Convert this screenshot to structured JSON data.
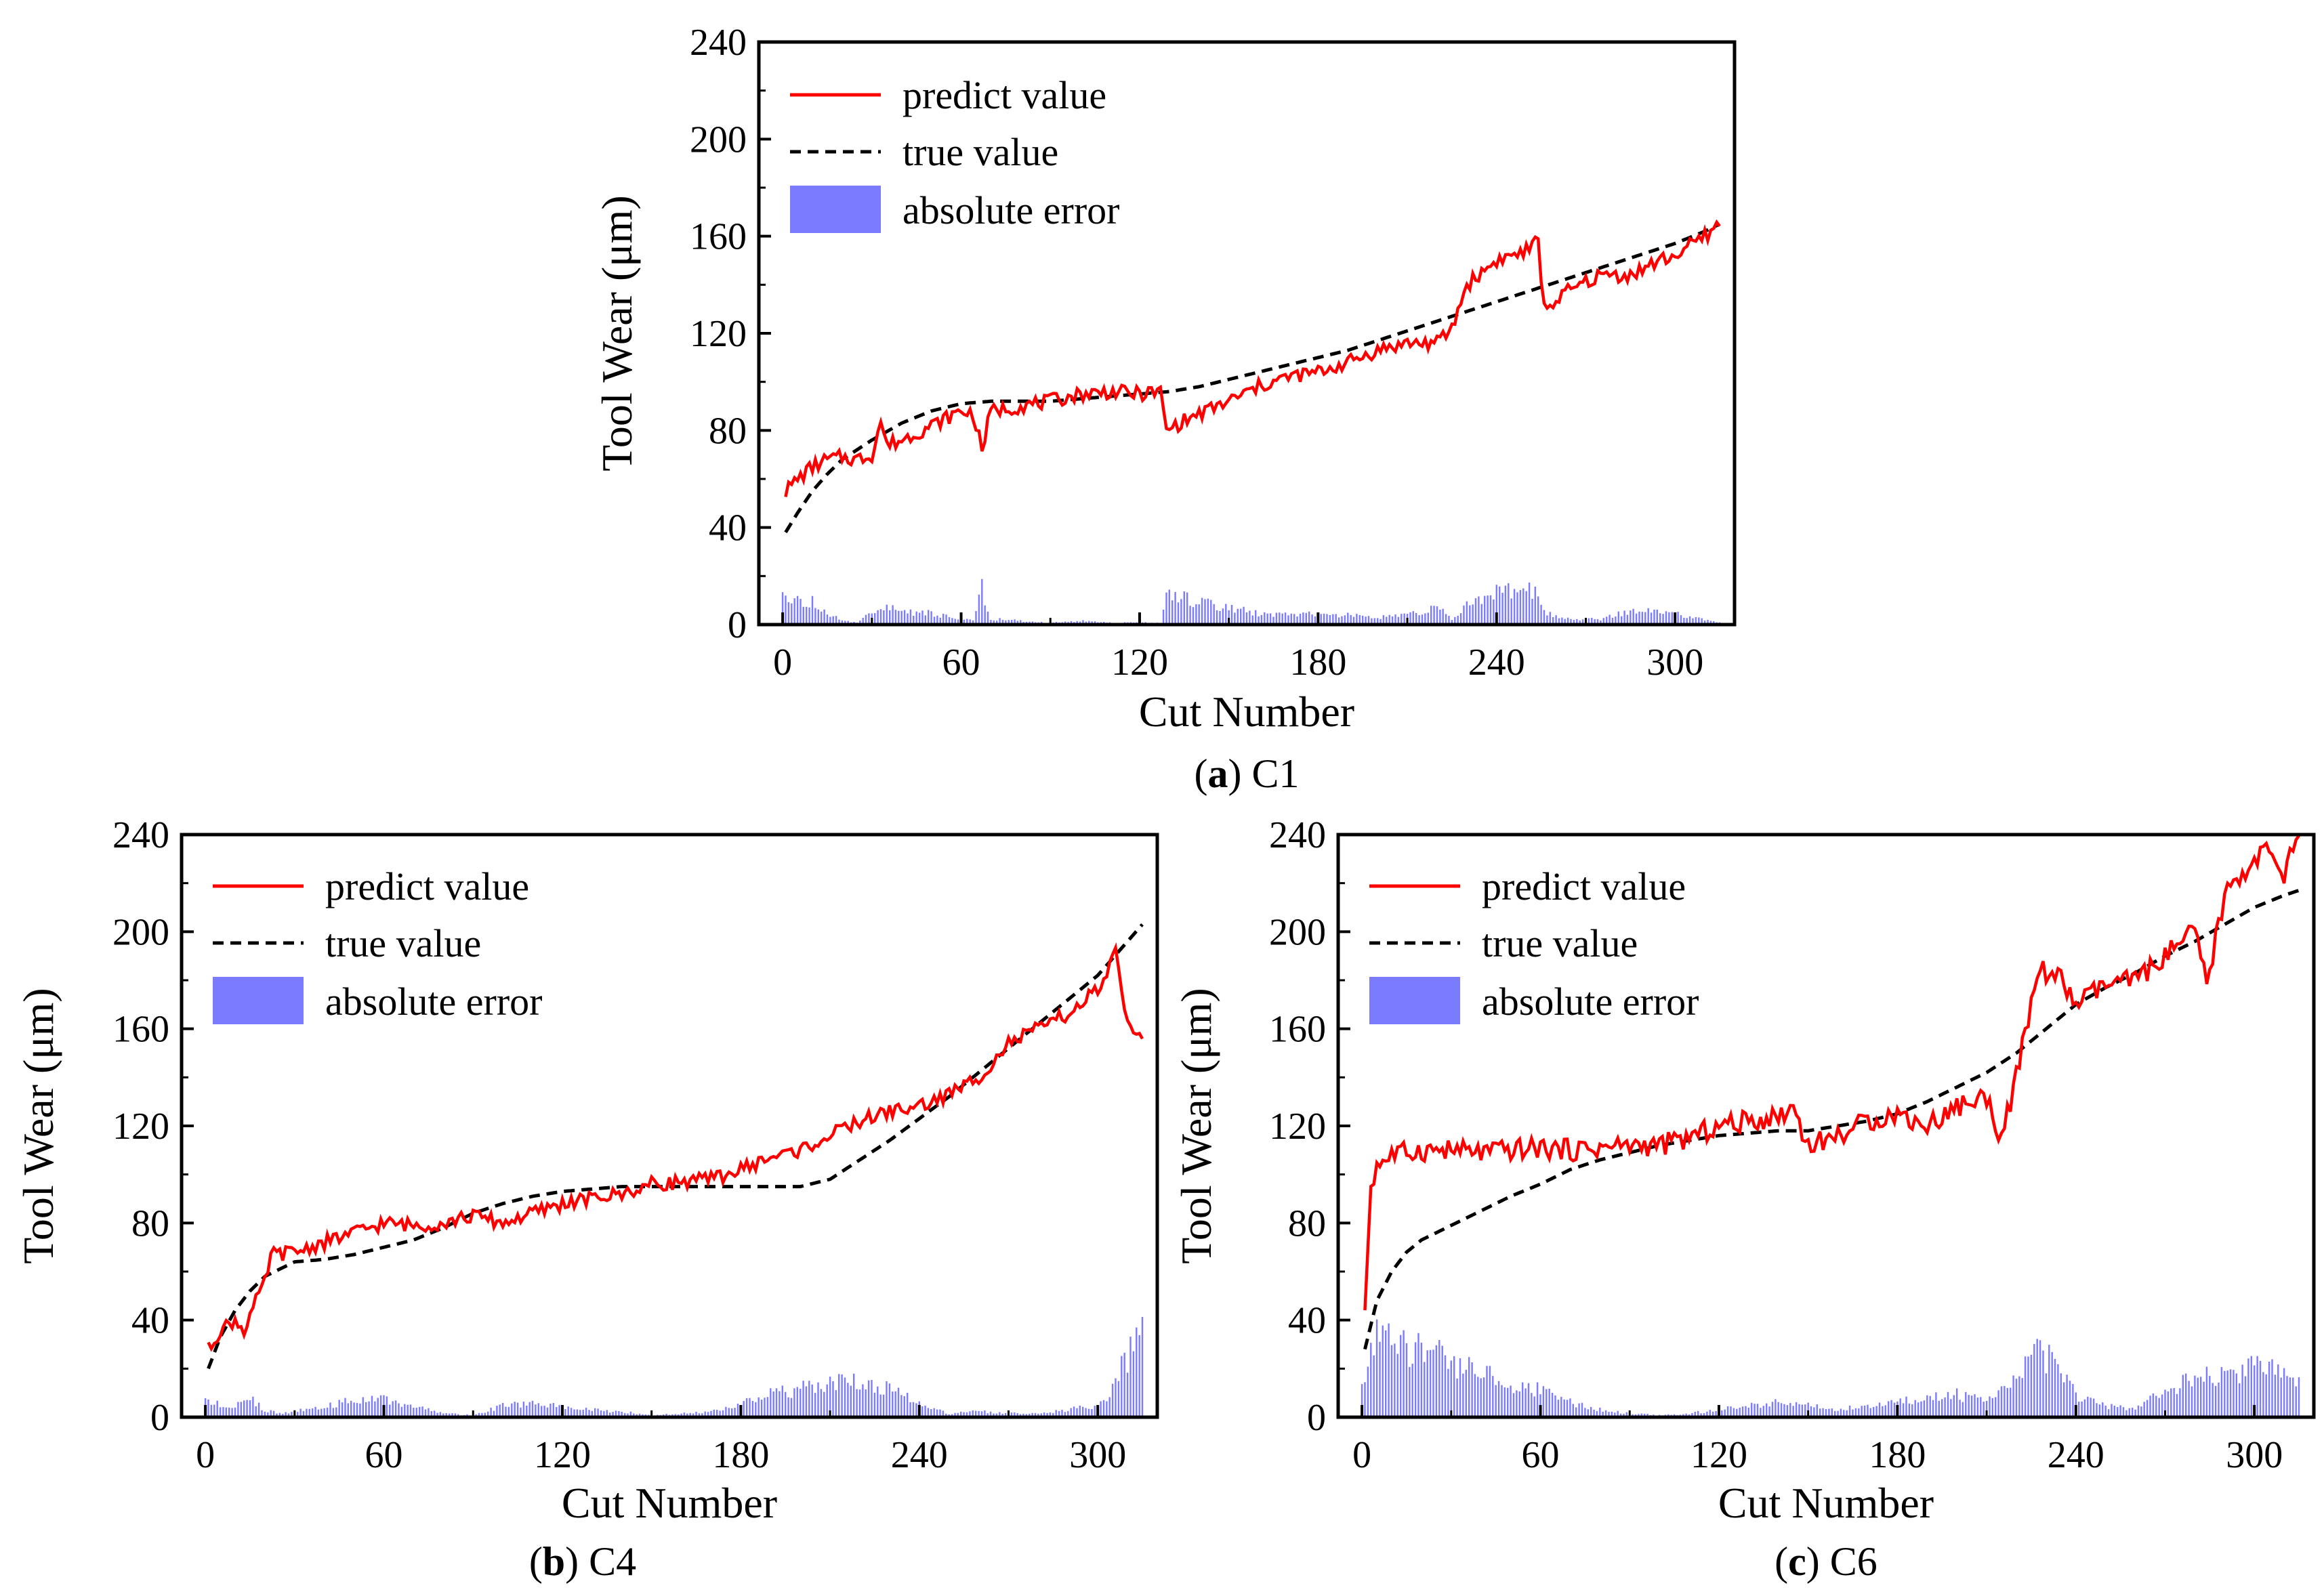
{
  "legend": {
    "predict": "predict value",
    "true": "true value",
    "error": "absolute error"
  },
  "colors": {
    "predict": "#ff0000",
    "true": "#000000",
    "error": "#7b7bff"
  },
  "chart_data": [
    {
      "id": "C1",
      "type": "line",
      "caption_letter": "a",
      "caption_label": "C1",
      "xlabel": "Cut Number",
      "ylabel": "Tool Wear (μm)",
      "xlim": [
        -8,
        320
      ],
      "ylim": [
        0,
        240
      ],
      "xticks": [
        0,
        60,
        120,
        180,
        240,
        300
      ],
      "yticks": [
        0,
        40,
        80,
        120,
        160,
        200,
        240
      ],
      "legend_position": "top-left",
      "n_cuts": 315,
      "true_value": [
        [
          1,
          38
        ],
        [
          5,
          46
        ],
        [
          10,
          55
        ],
        [
          15,
          62
        ],
        [
          20,
          68
        ],
        [
          30,
          76
        ],
        [
          40,
          83
        ],
        [
          50,
          88
        ],
        [
          60,
          91
        ],
        [
          70,
          92
        ],
        [
          80,
          92
        ],
        [
          90,
          92
        ],
        [
          100,
          93
        ],
        [
          110,
          94
        ],
        [
          120,
          95
        ],
        [
          130,
          96
        ],
        [
          140,
          98
        ],
        [
          150,
          101
        ],
        [
          160,
          104
        ],
        [
          170,
          107
        ],
        [
          180,
          110
        ],
        [
          190,
          113
        ],
        [
          200,
          117
        ],
        [
          210,
          121
        ],
        [
          220,
          125
        ],
        [
          230,
          129
        ],
        [
          240,
          133
        ],
        [
          250,
          137
        ],
        [
          260,
          141
        ],
        [
          270,
          145
        ],
        [
          280,
          149
        ],
        [
          290,
          153
        ],
        [
          300,
          157
        ],
        [
          310,
          162
        ],
        [
          315,
          165
        ]
      ],
      "predict_value": [
        [
          1,
          55
        ],
        [
          5,
          60
        ],
        [
          10,
          65
        ],
        [
          15,
          68
        ],
        [
          20,
          69
        ],
        [
          25,
          68
        ],
        [
          30,
          70
        ],
        [
          33,
          84
        ],
        [
          35,
          74
        ],
        [
          40,
          76
        ],
        [
          50,
          82
        ],
        [
          60,
          88
        ],
        [
          64,
          87
        ],
        [
          67,
          72
        ],
        [
          70,
          88
        ],
        [
          80,
          90
        ],
        [
          90,
          92
        ],
        [
          100,
          95
        ],
        [
          110,
          96
        ],
        [
          120,
          95
        ],
        [
          127,
          96
        ],
        [
          129,
          80
        ],
        [
          135,
          84
        ],
        [
          150,
          92
        ],
        [
          160,
          98
        ],
        [
          170,
          102
        ],
        [
          180,
          104
        ],
        [
          190,
          108
        ],
        [
          200,
          113
        ],
        [
          210,
          116
        ],
        [
          220,
          116
        ],
        [
          225,
          122
        ],
        [
          230,
          140
        ],
        [
          240,
          150
        ],
        [
          250,
          154
        ],
        [
          254,
          158
        ],
        [
          256,
          130
        ],
        [
          265,
          138
        ],
        [
          275,
          144
        ],
        [
          285,
          144
        ],
        [
          295,
          150
        ],
        [
          300,
          152
        ],
        [
          310,
          160
        ],
        [
          315,
          165
        ]
      ],
      "error_envelope": [
        [
          0,
          16
        ],
        [
          10,
          12
        ],
        [
          15,
          6
        ],
        [
          20,
          2
        ],
        [
          25,
          1
        ],
        [
          33,
          10
        ],
        [
          40,
          7
        ],
        [
          50,
          6
        ],
        [
          60,
          3
        ],
        [
          64,
          2
        ],
        [
          67,
          19
        ],
        [
          70,
          3
        ],
        [
          80,
          2
        ],
        [
          90,
          1
        ],
        [
          100,
          2
        ],
        [
          110,
          1
        ],
        [
          120,
          1
        ],
        [
          127,
          1
        ],
        [
          129,
          16
        ],
        [
          140,
          12
        ],
        [
          150,
          9
        ],
        [
          160,
          6
        ],
        [
          170,
          5
        ],
        [
          180,
          6
        ],
        [
          190,
          5
        ],
        [
          200,
          4
        ],
        [
          210,
          5
        ],
        [
          220,
          9
        ],
        [
          225,
          3
        ],
        [
          230,
          12
        ],
        [
          240,
          17
        ],
        [
          250,
          18
        ],
        [
          254,
          20
        ],
        [
          256,
          6
        ],
        [
          265,
          3
        ],
        [
          275,
          3
        ],
        [
          285,
          7
        ],
        [
          295,
          8
        ],
        [
          305,
          4
        ],
        [
          315,
          1
        ]
      ]
    },
    {
      "id": "C4",
      "type": "line",
      "caption_letter": "b",
      "caption_label": "C4",
      "xlabel": "Cut Number",
      "ylabel": "Tool Wear (μm)",
      "xlim": [
        -8,
        320
      ],
      "ylim": [
        0,
        240
      ],
      "xticks": [
        0,
        60,
        120,
        180,
        240,
        300
      ],
      "yticks": [
        0,
        40,
        80,
        120,
        160,
        200,
        240
      ],
      "legend_position": "top-left",
      "n_cuts": 315,
      "true_value": [
        [
          1,
          20
        ],
        [
          5,
          33
        ],
        [
          10,
          44
        ],
        [
          15,
          52
        ],
        [
          20,
          58
        ],
        [
          30,
          64
        ],
        [
          40,
          65
        ],
        [
          50,
          67
        ],
        [
          60,
          70
        ],
        [
          70,
          73
        ],
        [
          80,
          78
        ],
        [
          90,
          84
        ],
        [
          100,
          88
        ],
        [
          110,
          91
        ],
        [
          120,
          93
        ],
        [
          130,
          94
        ],
        [
          140,
          95
        ],
        [
          160,
          95
        ],
        [
          180,
          95
        ],
        [
          200,
          95
        ],
        [
          210,
          98
        ],
        [
          220,
          106
        ],
        [
          230,
          114
        ],
        [
          240,
          123
        ],
        [
          250,
          132
        ],
        [
          260,
          142
        ],
        [
          270,
          152
        ],
        [
          280,
          162
        ],
        [
          290,
          172
        ],
        [
          300,
          182
        ],
        [
          310,
          196
        ],
        [
          315,
          203
        ]
      ],
      "predict_value": [
        [
          1,
          28
        ],
        [
          5,
          36
        ],
        [
          10,
          40
        ],
        [
          13,
          36
        ],
        [
          16,
          45
        ],
        [
          20,
          55
        ],
        [
          22,
          67
        ],
        [
          30,
          68
        ],
        [
          40,
          72
        ],
        [
          50,
          76
        ],
        [
          60,
          80
        ],
        [
          70,
          79
        ],
        [
          80,
          80
        ],
        [
          90,
          83
        ],
        [
          100,
          80
        ],
        [
          110,
          84
        ],
        [
          120,
          88
        ],
        [
          130,
          90
        ],
        [
          140,
          92
        ],
        [
          150,
          96
        ],
        [
          160,
          97
        ],
        [
          170,
          98
        ],
        [
          180,
          102
        ],
        [
          190,
          107
        ],
        [
          200,
          110
        ],
        [
          210,
          116
        ],
        [
          220,
          122
        ],
        [
          230,
          126
        ],
        [
          240,
          128
        ],
        [
          250,
          133
        ],
        [
          260,
          140
        ],
        [
          270,
          154
        ],
        [
          280,
          160
        ],
        [
          290,
          166
        ],
        [
          300,
          176
        ],
        [
          303,
          182
        ],
        [
          306,
          192
        ],
        [
          309,
          165
        ],
        [
          312,
          161
        ],
        [
          315,
          157
        ]
      ],
      "error_envelope": [
        [
          0,
          8
        ],
        [
          10,
          6
        ],
        [
          15,
          10
        ],
        [
          20,
          4
        ],
        [
          25,
          2
        ],
        [
          30,
          3
        ],
        [
          40,
          6
        ],
        [
          50,
          9
        ],
        [
          60,
          10
        ],
        [
          70,
          6
        ],
        [
          80,
          2
        ],
        [
          90,
          1
        ],
        [
          100,
          6
        ],
        [
          110,
          7
        ],
        [
          120,
          6
        ],
        [
          130,
          4
        ],
        [
          140,
          3
        ],
        [
          150,
          1
        ],
        [
          160,
          2
        ],
        [
          170,
          3
        ],
        [
          180,
          7
        ],
        [
          190,
          12
        ],
        [
          200,
          15
        ],
        [
          210,
          18
        ],
        [
          220,
          18
        ],
        [
          230,
          15
        ],
        [
          240,
          8
        ],
        [
          250,
          2
        ],
        [
          260,
          3
        ],
        [
          270,
          2
        ],
        [
          280,
          2
        ],
        [
          290,
          4
        ],
        [
          300,
          6
        ],
        [
          303,
          8
        ],
        [
          306,
          18
        ],
        [
          309,
          30
        ],
        [
          312,
          40
        ],
        [
          315,
          46
        ]
      ]
    },
    {
      "id": "C6",
      "type": "line",
      "caption_letter": "c",
      "caption_label": "C6",
      "xlabel": "Cut Number",
      "ylabel": "Tool Wear (μm)",
      "xlim": [
        -8,
        320
      ],
      "ylim": [
        0,
        240
      ],
      "xticks": [
        0,
        60,
        120,
        180,
        240,
        300
      ],
      "yticks": [
        0,
        40,
        80,
        120,
        160,
        200,
        240
      ],
      "legend_position": "top-left",
      "n_cuts": 315,
      "true_value": [
        [
          1,
          28
        ],
        [
          5,
          48
        ],
        [
          10,
          60
        ],
        [
          15,
          68
        ],
        [
          20,
          73
        ],
        [
          30,
          79
        ],
        [
          40,
          85
        ],
        [
          50,
          91
        ],
        [
          60,
          96
        ],
        [
          70,
          102
        ],
        [
          80,
          106
        ],
        [
          90,
          109
        ],
        [
          100,
          112
        ],
        [
          110,
          114
        ],
        [
          120,
          116
        ],
        [
          130,
          117
        ],
        [
          140,
          118
        ],
        [
          150,
          118
        ],
        [
          160,
          120
        ],
        [
          170,
          122
        ],
        [
          180,
          125
        ],
        [
          190,
          130
        ],
        [
          200,
          136
        ],
        [
          210,
          142
        ],
        [
          220,
          150
        ],
        [
          230,
          160
        ],
        [
          240,
          170
        ],
        [
          250,
          177
        ],
        [
          260,
          183
        ],
        [
          270,
          190
        ],
        [
          280,
          196
        ],
        [
          290,
          203
        ],
        [
          300,
          210
        ],
        [
          310,
          215
        ],
        [
          315,
          217
        ]
      ],
      "predict_value": [
        [
          1,
          46
        ],
        [
          3,
          95
        ],
        [
          5,
          104
        ],
        [
          10,
          108
        ],
        [
          20,
          110
        ],
        [
          30,
          110
        ],
        [
          40,
          109
        ],
        [
          50,
          110
        ],
        [
          60,
          111
        ],
        [
          70,
          110
        ],
        [
          80,
          111
        ],
        [
          90,
          112
        ],
        [
          100,
          112
        ],
        [
          110,
          115
        ],
        [
          120,
          120
        ],
        [
          130,
          122
        ],
        [
          140,
          124
        ],
        [
          145,
          128
        ],
        [
          150,
          112
        ],
        [
          160,
          116
        ],
        [
          170,
          122
        ],
        [
          180,
          125
        ],
        [
          190,
          120
        ],
        [
          200,
          128
        ],
        [
          210,
          132
        ],
        [
          215,
          115
        ],
        [
          220,
          140
        ],
        [
          225,
          170
        ],
        [
          228,
          185
        ],
        [
          235,
          180
        ],
        [
          240,
          170
        ],
        [
          250,
          178
        ],
        [
          260,
          180
        ],
        [
          270,
          190
        ],
        [
          280,
          200
        ],
        [
          284,
          178
        ],
        [
          290,
          215
        ],
        [
          300,
          230
        ],
        [
          305,
          234
        ],
        [
          310,
          218
        ],
        [
          312,
          235
        ],
        [
          315,
          236
        ]
      ],
      "error_envelope": [
        [
          0,
          18
        ],
        [
          5,
          44
        ],
        [
          10,
          40
        ],
        [
          20,
          35
        ],
        [
          30,
          30
        ],
        [
          40,
          24
        ],
        [
          50,
          18
        ],
        [
          60,
          14
        ],
        [
          70,
          8
        ],
        [
          80,
          4
        ],
        [
          90,
          2
        ],
        [
          100,
          1
        ],
        [
          110,
          2
        ],
        [
          120,
          4
        ],
        [
          130,
          6
        ],
        [
          140,
          8
        ],
        [
          150,
          6
        ],
        [
          160,
          4
        ],
        [
          170,
          6
        ],
        [
          180,
          8
        ],
        [
          190,
          10
        ],
        [
          200,
          12
        ],
        [
          210,
          8
        ],
        [
          215,
          14
        ],
        [
          220,
          18
        ],
        [
          225,
          30
        ],
        [
          228,
          35
        ],
        [
          235,
          24
        ],
        [
          240,
          12
        ],
        [
          250,
          6
        ],
        [
          260,
          4
        ],
        [
          270,
          14
        ],
        [
          280,
          20
        ],
        [
          290,
          24
        ],
        [
          300,
          26
        ],
        [
          305,
          26
        ],
        [
          310,
          22
        ],
        [
          315,
          20
        ]
      ]
    }
  ]
}
